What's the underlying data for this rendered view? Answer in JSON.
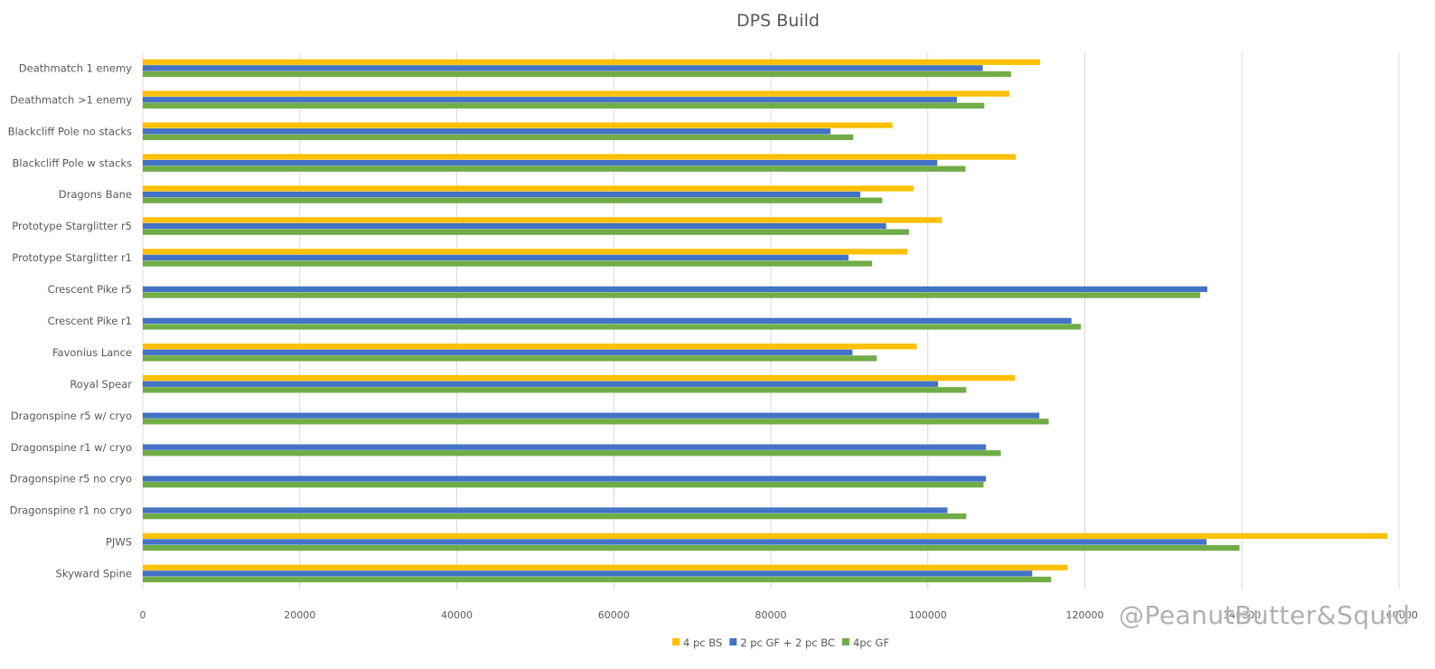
{
  "chart_data": {
    "type": "bar",
    "orientation": "horizontal",
    "title": "DPS Build",
    "xlabel": "",
    "ylabel": "",
    "xlim": [
      0,
      160000
    ],
    "xticks": [
      0,
      20000,
      40000,
      60000,
      80000,
      100000,
      120000,
      140000,
      160000
    ],
    "xtick_labels": [
      "0",
      "20000",
      "40000",
      "60000",
      "80000",
      "100000",
      "120000",
      "140000",
      "160000"
    ],
    "grid": true,
    "legend_position": "bottom",
    "categories": [
      "Deathmatch 1 enemy",
      "Deathmatch >1 enemy",
      "Blackcliff Pole no stacks",
      "Blackcliff Pole w stacks",
      "Dragons Bane",
      "Prototype Starglitter r5",
      "Prototype Starglitter r1",
      "Crescent Pike r5",
      "Crescent Pike r1",
      "Favonius Lance",
      "Royal Spear",
      "Dragonspine r5 w/ cryo",
      "Dragonspine r1 w/ cryo",
      "Dragonspine r5 no cryo",
      "Dragonspine r1 no cryo",
      "PJWS",
      "Skyward Spine"
    ],
    "series": [
      {
        "name": "4 pc BS",
        "color": "#FFC000",
        "values": [
          114300,
          110400,
          95500,
          111200,
          98200,
          101800,
          97400,
          null,
          null,
          98600,
          111100,
          null,
          null,
          null,
          null,
          158500,
          117800
        ]
      },
      {
        "name": "2 pc GF + 2 pc BC",
        "color": "#4472C4",
        "values": [
          107000,
          103700,
          87600,
          101200,
          91400,
          94700,
          89900,
          135600,
          118300,
          90400,
          101300,
          114200,
          107400,
          107400,
          102500,
          135500,
          113300
        ]
      },
      {
        "name": "4pc GF",
        "color": "#70AD47",
        "values": [
          110600,
          107200,
          90500,
          104800,
          94200,
          97600,
          92900,
          134700,
          119500,
          93500,
          104900,
          115400,
          109300,
          107100,
          104900,
          139700,
          115700
        ]
      }
    ]
  },
  "watermark": "@PeanutButter&Squid"
}
